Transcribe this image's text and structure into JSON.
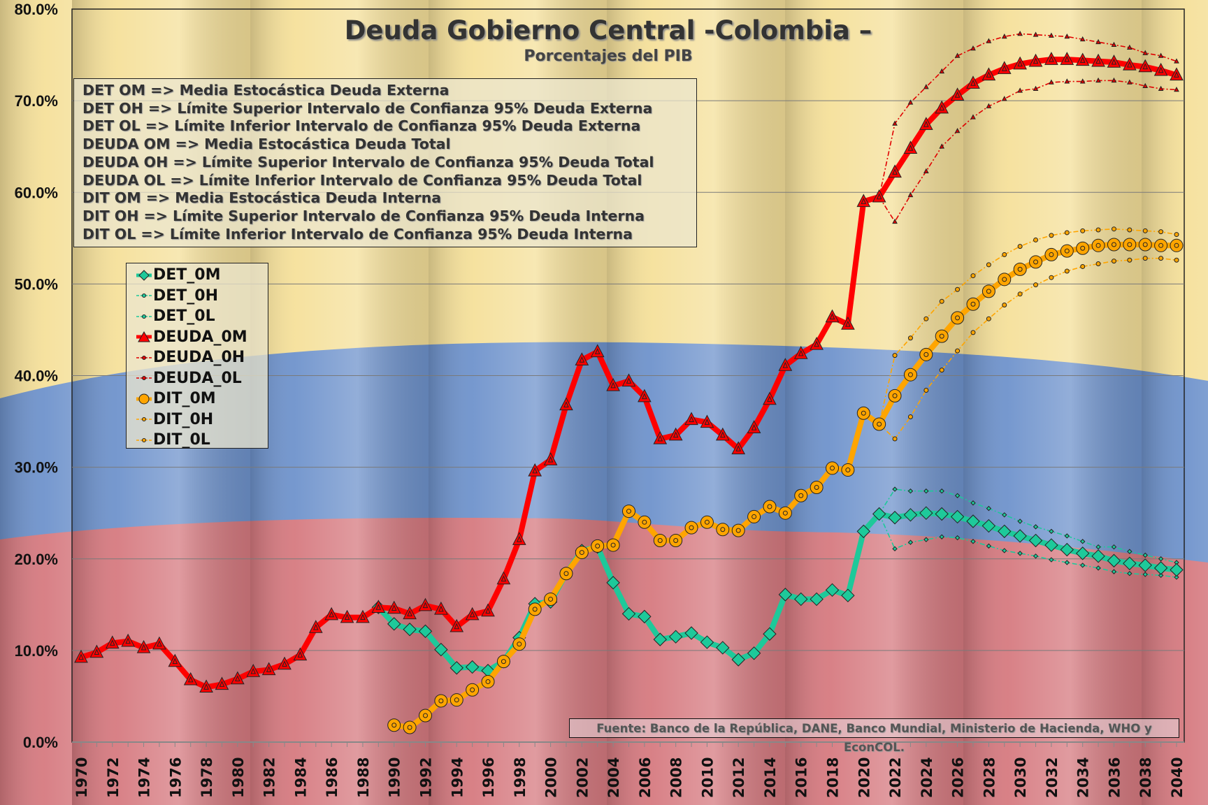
{
  "chart_data": {
    "type": "line",
    "title": "Deuda Gobierno Central -Colombia –",
    "subtitle": "Porcentajes del PIB",
    "xlabel": "",
    "ylabel": "",
    "ylim": [
      0,
      80
    ],
    "xlim": [
      1970,
      2040
    ],
    "y_ticks": [
      "0.0%",
      "10.0%",
      "20.0%",
      "30.0%",
      "40.0%",
      "50.0%",
      "60.0%",
      "70.0%",
      "80.0%"
    ],
    "x_ticks": [
      "1970",
      "1972",
      "1974",
      "1976",
      "1978",
      "1980",
      "1982",
      "1984",
      "1986",
      "1988",
      "1990",
      "1992",
      "1994",
      "1996",
      "1998",
      "2000",
      "2002",
      "2004",
      "2006",
      "2008",
      "2010",
      "2012",
      "2014",
      "2016",
      "2018",
      "2020",
      "2022",
      "2024",
      "2026",
      "2028",
      "2030",
      "2032",
      "2034",
      "2036",
      "2038",
      "2040"
    ],
    "grid": true,
    "legend_position": "left",
    "definitions": [
      "DET OM => Media Estocástica Deuda Externa",
      "DET OH => Límite Superior Intervalo de Confianza 95% Deuda Externa",
      "DET OL => Límite Inferior Intervalo de Confianza 95% Deuda Externa",
      "DEUDA OM => Media Estocástica Deuda Total",
      "DEUDA OH => Límite Superior Intervalo de Confianza 95% Deuda Total",
      "DEUDA OL => Límite Inferior Intervalo de Confianza 95% Deuda Total",
      "DIT OM => Media Estocástica Deuda Interna",
      "DIT OH => Límite Superior Intervalo de Confianza 95% Deuda Interna",
      "DIT OL => Límite Inferior Intervalo de Confianza 95% Deuda Interna"
    ],
    "source": "Fuente: Banco de la República, DANE, Banco Mundial, Ministerio de Hacienda, WHO y EconCOL.",
    "series": [
      {
        "name": "DET_0M",
        "color": "#1ec99a",
        "marker": "diamond",
        "style": "thick",
        "start": 1989,
        "values": [
          14.7,
          12.9,
          12.3,
          12.1,
          10.1,
          8.1,
          8.2,
          7.8,
          8.8,
          11.4,
          15.1,
          15.3,
          18.4,
          20.9,
          21.3,
          17.4,
          14.0,
          13.7,
          11.2,
          11.5,
          11.9,
          10.9,
          10.3,
          9.0,
          9.7,
          11.8,
          16.1,
          15.6,
          15.6,
          16.6,
          16.0,
          23.0,
          24.9,
          24.5,
          24.8,
          25.0,
          24.9,
          24.6,
          24.1,
          23.6,
          23.0,
          22.5,
          22.0,
          21.5,
          21.0,
          20.6,
          20.3,
          19.8,
          19.5,
          19.3,
          19.0,
          18.8
        ]
      },
      {
        "name": "DET_0H",
        "color": "#1ec99a",
        "marker": "diamond",
        "style": "thin",
        "start": 2021,
        "values": [
          24.9,
          27.6,
          27.4,
          27.4,
          27.4,
          26.9,
          26.1,
          25.5,
          24.8,
          24.1,
          23.5,
          23.0,
          22.5,
          21.9,
          21.3,
          21.3,
          20.8,
          20.4,
          20.0,
          19.6
        ]
      },
      {
        "name": "DET_0L",
        "color": "#1ec99a",
        "marker": "diamond",
        "style": "thin",
        "start": 2021,
        "values": [
          24.9,
          21.1,
          21.8,
          22.1,
          22.4,
          22.3,
          21.9,
          21.4,
          20.9,
          20.6,
          20.3,
          19.9,
          19.6,
          19.3,
          19.0,
          18.6,
          18.4,
          18.3,
          18.2,
          18.0
        ]
      },
      {
        "name": "DEUDA_0M",
        "color": "#ff0000",
        "marker": "triangle",
        "style": "thick",
        "start": 1970,
        "values": [
          9.25,
          9.8,
          10.8,
          11.0,
          10.3,
          10.7,
          8.8,
          6.8,
          6.0,
          6.3,
          6.9,
          7.7,
          7.9,
          8.5,
          9.5,
          12.5,
          13.9,
          13.6,
          13.6,
          14.7,
          14.6,
          14.0,
          14.9,
          14.5,
          12.6,
          13.9,
          14.3,
          17.8,
          22.1,
          29.6,
          30.8,
          36.8,
          41.7,
          42.6,
          38.9,
          39.4,
          37.7,
          33.1,
          33.5,
          35.2,
          34.9,
          33.5,
          32.0,
          34.3,
          37.4,
          41.1,
          42.4,
          43.4,
          46.4,
          45.6,
          59.0,
          59.5,
          62.2,
          64.8,
          67.4,
          69.2,
          70.6,
          71.9,
          72.8,
          73.5,
          74.0,
          74.3,
          74.5,
          74.5,
          74.4,
          74.3,
          74.2,
          73.9,
          73.7,
          73.3,
          72.8
        ]
      },
      {
        "name": "DEUDA_0H",
        "color": "#e00000",
        "marker": "triangle",
        "style": "thin",
        "start": 2021,
        "values": [
          59.5,
          67.5,
          69.8,
          71.5,
          73.2,
          74.9,
          75.7,
          76.5,
          77.0,
          77.3,
          77.2,
          77.1,
          77.0,
          76.7,
          76.4,
          76.1,
          75.8,
          75.2,
          74.9,
          74.3
        ]
      },
      {
        "name": "DEUDA_0L",
        "color": "#e00000",
        "marker": "triangle",
        "style": "thin",
        "start": 2021,
        "values": [
          59.5,
          56.8,
          59.7,
          62.3,
          65.0,
          66.7,
          68.2,
          69.4,
          70.2,
          71.1,
          71.3,
          72.0,
          72.1,
          72.1,
          72.2,
          72.2,
          72.0,
          71.6,
          71.3,
          71.2
        ]
      },
      {
        "name": "DIT_0M",
        "color": "#ffa500",
        "marker": "circle",
        "style": "thick",
        "start": 1990,
        "values": [
          1.85,
          1.6,
          2.9,
          4.5,
          4.6,
          5.7,
          6.6,
          8.8,
          10.7,
          14.5,
          15.6,
          18.4,
          20.7,
          21.4,
          21.5,
          25.2,
          24.0,
          22.0,
          22.0,
          23.4,
          24.0,
          23.2,
          23.1,
          24.6,
          25.7,
          25.0,
          26.9,
          27.8,
          29.9,
          29.7,
          35.9,
          34.7,
          37.8,
          40.1,
          42.3,
          44.3,
          46.3,
          47.8,
          49.2,
          50.5,
          51.6,
          52.4,
          53.2,
          53.6,
          53.9,
          54.2,
          54.3,
          54.3,
          54.3,
          54.2,
          54.2
        ]
      },
      {
        "name": "DIT_0H",
        "color": "#ffa500",
        "marker": "circle",
        "style": "thin",
        "start": 2021,
        "values": [
          34.7,
          42.2,
          44.1,
          46.2,
          48.1,
          49.4,
          50.9,
          52.1,
          53.2,
          54.1,
          54.8,
          55.3,
          55.6,
          55.8,
          55.9,
          56.0,
          55.9,
          55.8,
          55.7,
          55.4
        ]
      },
      {
        "name": "DIT_0L",
        "color": "#ffa500",
        "marker": "circle",
        "style": "thin",
        "start": 2021,
        "values": [
          34.7,
          33.1,
          35.5,
          38.4,
          40.6,
          42.7,
          44.7,
          46.2,
          47.7,
          48.9,
          49.9,
          50.7,
          51.4,
          51.9,
          52.2,
          52.5,
          52.6,
          52.8,
          52.8,
          52.6
        ]
      }
    ]
  }
}
